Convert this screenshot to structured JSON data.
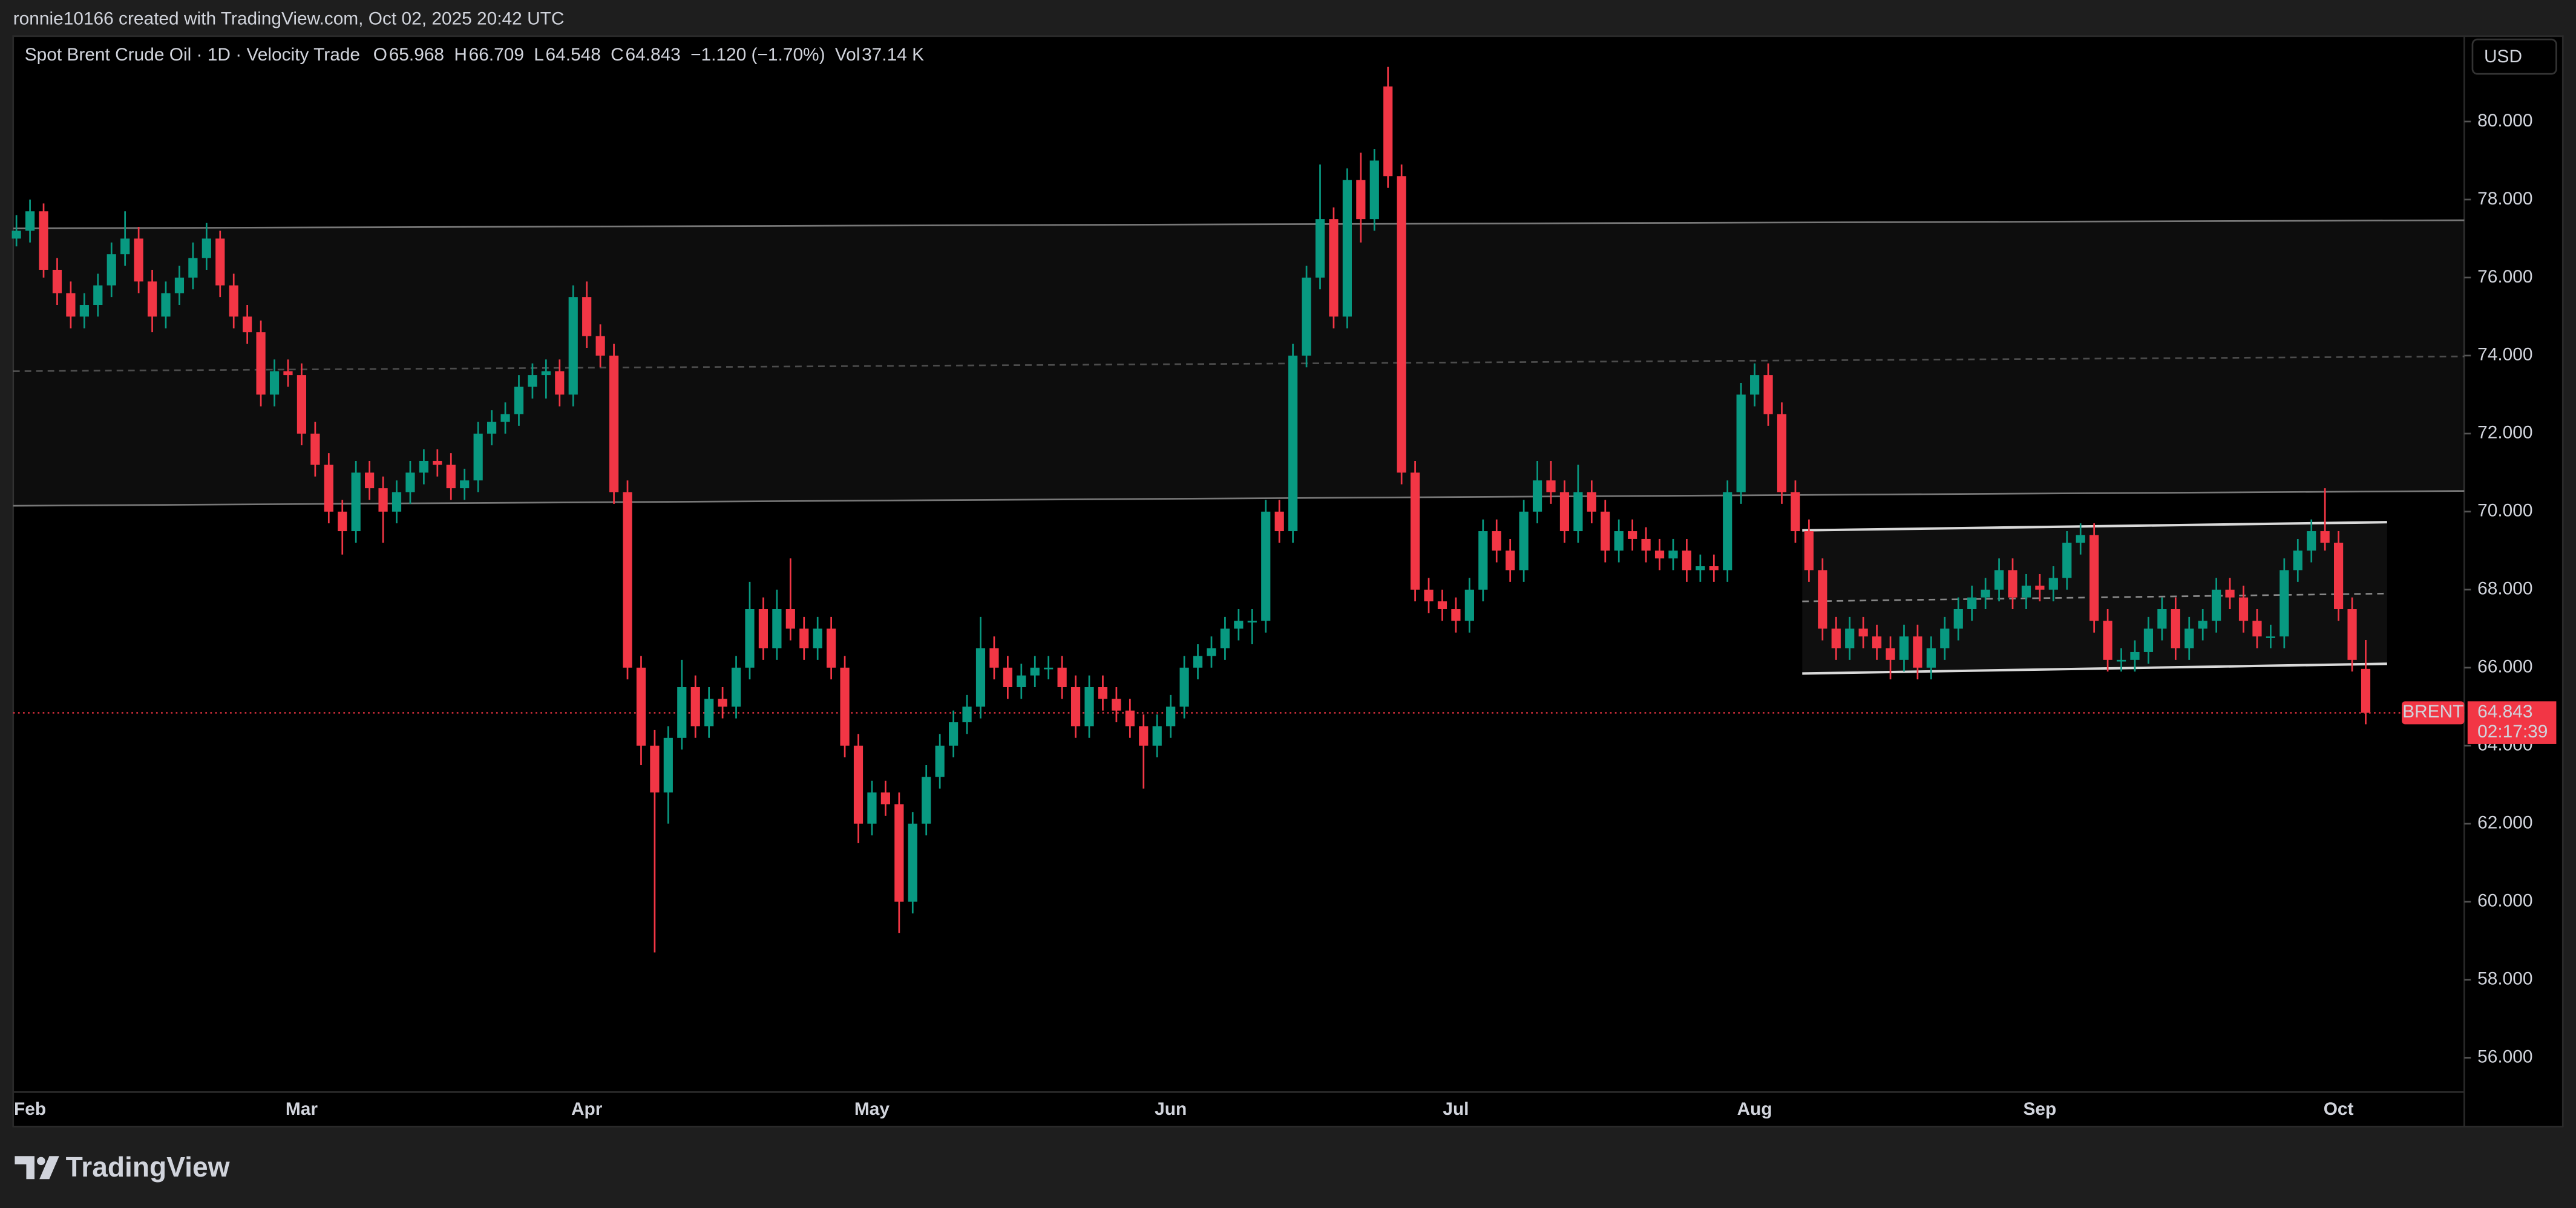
{
  "attribution": "ronnie10166 created with TradingView.com, Oct 02, 2025 20:42 UTC",
  "brand": "TradingView",
  "currency": "USD",
  "chart_data": {
    "type": "candlestick",
    "title": "Spot Brent Crude Oil · 1D · Velocity Trade",
    "legend": [
      {
        "label": "O",
        "value": 65.968
      },
      {
        "label": "H",
        "value": 66.709
      },
      {
        "label": "L",
        "value": 64.548
      },
      {
        "label": "C",
        "value": 64.843
      }
    ],
    "change": "−1.120 (−1.70%)",
    "volume": {
      "label": "Vol",
      "value": "37.14 K"
    },
    "up_color": "#089981",
    "down_color": "#f23645",
    "ylim": [
      55.12,
      82.19
    ],
    "yticks": [
      {
        "value": 56,
        "label": "56.000"
      },
      {
        "value": 58,
        "label": "58.000"
      },
      {
        "value": 60,
        "label": "60.000"
      },
      {
        "value": 62,
        "label": "62.000"
      },
      {
        "value": 64,
        "label": "64.000"
      },
      {
        "value": 66,
        "label": "66.000"
      },
      {
        "value": 68,
        "label": "68.000"
      },
      {
        "value": 70,
        "label": "70.000"
      },
      {
        "value": 72,
        "label": "72.000"
      },
      {
        "value": 74,
        "label": "74.000"
      },
      {
        "value": 76,
        "label": "76.000"
      },
      {
        "value": 78,
        "label": "78.000"
      },
      {
        "value": 80,
        "label": "80.000"
      }
    ],
    "last_price": {
      "name": "BRENT",
      "value": 64.843,
      "countdown": "02:17:39"
    },
    "drawings": [
      {
        "top": [
          77.26,
          77.47
        ],
        "mid": [
          73.6,
          73.98
        ],
        "bottom": [
          70.15,
          70.53
        ]
      },
      {
        "top": [
          69.52,
          69.73
        ],
        "mid": [
          67.7,
          67.9
        ],
        "bottom": [
          65.85,
          66.1
        ]
      }
    ],
    "categories": [
      null,
      "Feb",
      null,
      null,
      null,
      null,
      null,
      null,
      null,
      null,
      null,
      null,
      null,
      null,
      null,
      null,
      null,
      null,
      null,
      null,
      null,
      "Mar",
      null,
      null,
      null,
      null,
      null,
      null,
      null,
      null,
      null,
      null,
      null,
      null,
      null,
      null,
      null,
      null,
      null,
      null,
      null,
      null,
      "Apr",
      null,
      null,
      null,
      null,
      null,
      null,
      null,
      null,
      null,
      null,
      null,
      null,
      null,
      null,
      null,
      null,
      null,
      null,
      null,
      null,
      "May",
      null,
      null,
      null,
      null,
      null,
      null,
      null,
      null,
      null,
      null,
      null,
      null,
      null,
      null,
      null,
      null,
      null,
      null,
      null,
      null,
      null,
      "Jun",
      null,
      null,
      null,
      null,
      null,
      null,
      null,
      null,
      null,
      null,
      null,
      null,
      null,
      null,
      null,
      null,
      null,
      null,
      null,
      null,
      "Jul",
      null,
      null,
      null,
      null,
      null,
      null,
      null,
      null,
      null,
      null,
      null,
      null,
      null,
      null,
      null,
      null,
      null,
      null,
      null,
      null,
      null,
      "Aug",
      null,
      null,
      null,
      null,
      null,
      null,
      null,
      null,
      null,
      null,
      null,
      null,
      null,
      null,
      null,
      null,
      null,
      null,
      null,
      null,
      "Sep",
      null,
      null,
      null,
      null,
      null,
      null,
      null,
      null,
      null,
      null,
      null,
      null,
      null,
      null,
      null,
      null,
      null,
      null,
      null,
      null,
      null,
      "Oct",
      null
    ],
    "ohlc": [
      [
        77.0,
        77.6,
        76.8,
        77.2
      ],
      [
        77.2,
        78.0,
        76.9,
        77.7
      ],
      [
        77.7,
        77.9,
        76.0,
        76.2
      ],
      [
        76.2,
        76.5,
        75.3,
        75.6
      ],
      [
        75.6,
        75.9,
        74.7,
        75.0
      ],
      [
        75.0,
        75.6,
        74.7,
        75.3
      ],
      [
        75.3,
        76.1,
        75.0,
        75.8
      ],
      [
        75.8,
        76.9,
        75.5,
        76.6
      ],
      [
        76.6,
        77.7,
        76.3,
        77.0
      ],
      [
        77.0,
        77.3,
        75.6,
        75.9
      ],
      [
        75.9,
        76.2,
        74.6,
        75.0
      ],
      [
        75.0,
        75.9,
        74.7,
        75.6
      ],
      [
        75.6,
        76.3,
        75.3,
        76.0
      ],
      [
        76.0,
        76.9,
        75.7,
        76.5
      ],
      [
        76.5,
        77.4,
        76.2,
        77.0
      ],
      [
        77.0,
        77.2,
        75.5,
        75.8
      ],
      [
        75.8,
        76.1,
        74.7,
        75.0
      ],
      [
        75.0,
        75.3,
        74.3,
        74.6
      ],
      [
        74.6,
        74.9,
        72.7,
        73.0
      ],
      [
        73.0,
        73.9,
        72.7,
        73.6
      ],
      [
        73.6,
        73.9,
        73.2,
        73.5
      ],
      [
        73.5,
        73.8,
        71.7,
        72.0
      ],
      [
        72.0,
        72.3,
        70.9,
        71.2
      ],
      [
        71.2,
        71.5,
        69.7,
        70.0
      ],
      [
        70.0,
        70.3,
        68.9,
        69.5
      ],
      [
        69.5,
        71.3,
        69.2,
        71.0
      ],
      [
        71.0,
        71.3,
        70.3,
        70.6
      ],
      [
        70.6,
        70.9,
        69.2,
        70.0
      ],
      [
        70.0,
        70.8,
        69.7,
        70.5
      ],
      [
        70.5,
        71.3,
        70.2,
        71.0
      ],
      [
        71.0,
        71.6,
        70.7,
        71.3
      ],
      [
        71.3,
        71.6,
        70.9,
        71.2
      ],
      [
        71.2,
        71.5,
        70.3,
        70.6
      ],
      [
        70.6,
        71.1,
        70.3,
        70.8
      ],
      [
        70.8,
        72.3,
        70.5,
        72.0
      ],
      [
        72.0,
        72.6,
        71.7,
        72.3
      ],
      [
        72.3,
        72.8,
        72.0,
        72.5
      ],
      [
        72.5,
        73.5,
        72.2,
        73.2
      ],
      [
        73.2,
        73.8,
        72.9,
        73.5
      ],
      [
        73.5,
        73.9,
        72.9,
        73.6
      ],
      [
        73.6,
        73.9,
        72.7,
        73.0
      ],
      [
        73.0,
        75.8,
        72.7,
        75.5
      ],
      [
        75.5,
        75.9,
        74.2,
        74.5
      ],
      [
        74.5,
        74.8,
        73.7,
        74.0
      ],
      [
        74.0,
        74.3,
        70.2,
        70.5
      ],
      [
        70.5,
        70.8,
        65.7,
        66.0
      ],
      [
        66.0,
        66.3,
        63.5,
        64.0
      ],
      [
        64.0,
        64.4,
        58.7,
        62.8
      ],
      [
        62.8,
        64.5,
        62.0,
        64.2
      ],
      [
        64.2,
        66.2,
        63.9,
        65.5
      ],
      [
        65.5,
        65.8,
        64.2,
        64.5
      ],
      [
        64.5,
        65.5,
        64.2,
        65.2
      ],
      [
        65.2,
        65.5,
        64.7,
        65.0
      ],
      [
        65.0,
        66.3,
        64.7,
        66.0
      ],
      [
        66.0,
        68.2,
        65.7,
        67.5
      ],
      [
        67.5,
        67.8,
        66.2,
        66.5
      ],
      [
        66.5,
        68.0,
        66.2,
        67.5
      ],
      [
        67.5,
        68.8,
        66.7,
        67.0
      ],
      [
        67.0,
        67.3,
        66.2,
        66.5
      ],
      [
        66.5,
        67.3,
        66.2,
        67.0
      ],
      [
        67.0,
        67.3,
        65.7,
        66.0
      ],
      [
        66.0,
        66.3,
        63.7,
        64.0
      ],
      [
        64.0,
        64.3,
        61.5,
        62.0
      ],
      [
        62.0,
        63.1,
        61.7,
        62.8
      ],
      [
        62.8,
        63.1,
        62.2,
        62.5
      ],
      [
        62.5,
        62.8,
        59.2,
        60.0
      ],
      [
        60.0,
        62.3,
        59.7,
        62.0
      ],
      [
        62.0,
        63.5,
        61.7,
        63.2
      ],
      [
        63.2,
        64.3,
        62.9,
        64.0
      ],
      [
        64.0,
        64.9,
        63.7,
        64.6
      ],
      [
        64.6,
        65.3,
        64.3,
        65.0
      ],
      [
        65.0,
        67.3,
        64.7,
        66.5
      ],
      [
        66.5,
        66.8,
        65.7,
        66.0
      ],
      [
        66.0,
        66.3,
        65.2,
        65.5
      ],
      [
        65.5,
        66.1,
        65.2,
        65.8
      ],
      [
        65.8,
        66.3,
        65.5,
        66.0
      ],
      [
        66.0,
        66.3,
        65.7,
        66.0
      ],
      [
        66.0,
        66.3,
        65.2,
        65.5
      ],
      [
        65.5,
        65.8,
        64.2,
        64.5
      ],
      [
        64.5,
        65.8,
        64.2,
        65.5
      ],
      [
        65.5,
        65.8,
        64.9,
        65.2
      ],
      [
        65.2,
        65.5,
        64.6,
        64.9
      ],
      [
        64.9,
        65.2,
        64.2,
        64.5
      ],
      [
        64.5,
        64.8,
        62.9,
        64.0
      ],
      [
        64.0,
        64.8,
        63.7,
        64.5
      ],
      [
        64.5,
        65.3,
        64.2,
        65.0
      ],
      [
        65.0,
        66.3,
        64.7,
        66.0
      ],
      [
        66.0,
        66.6,
        65.7,
        66.3
      ],
      [
        66.3,
        66.8,
        66.0,
        66.5
      ],
      [
        66.5,
        67.3,
        66.2,
        67.0
      ],
      [
        67.0,
        67.5,
        66.7,
        67.2
      ],
      [
        67.2,
        67.5,
        66.6,
        67.2
      ],
      [
        67.2,
        70.3,
        66.9,
        70.0
      ],
      [
        70.0,
        70.3,
        69.2,
        69.5
      ],
      [
        69.5,
        74.3,
        69.2,
        74.0
      ],
      [
        74.0,
        76.3,
        73.7,
        76.0
      ],
      [
        76.0,
        78.9,
        75.7,
        77.5
      ],
      [
        77.5,
        77.8,
        74.7,
        75.0
      ],
      [
        75.0,
        78.8,
        74.7,
        78.5
      ],
      [
        78.5,
        79.2,
        76.9,
        77.5
      ],
      [
        77.5,
        79.3,
        77.2,
        79.0
      ],
      [
        80.9,
        81.4,
        78.3,
        78.6
      ],
      [
        78.6,
        78.9,
        70.7,
        71.0
      ],
      [
        71.0,
        71.3,
        67.7,
        68.0
      ],
      [
        68.0,
        68.3,
        67.4,
        67.7
      ],
      [
        67.7,
        68.0,
        67.2,
        67.5
      ],
      [
        67.5,
        67.8,
        66.9,
        67.2
      ],
      [
        67.2,
        68.3,
        66.9,
        68.0
      ],
      [
        68.0,
        69.8,
        67.7,
        69.5
      ],
      [
        69.5,
        69.8,
        68.7,
        69.0
      ],
      [
        69.0,
        69.3,
        68.2,
        68.5
      ],
      [
        68.5,
        70.3,
        68.2,
        70.0
      ],
      [
        70.0,
        71.3,
        69.7,
        70.8
      ],
      [
        70.8,
        71.3,
        70.2,
        70.5
      ],
      [
        70.5,
        70.8,
        69.2,
        69.5
      ],
      [
        69.5,
        71.2,
        69.2,
        70.5
      ],
      [
        70.5,
        70.8,
        69.7,
        70.0
      ],
      [
        70.0,
        70.3,
        68.7,
        69.0
      ],
      [
        69.0,
        69.8,
        68.7,
        69.5
      ],
      [
        69.5,
        69.8,
        69.0,
        69.3
      ],
      [
        69.3,
        69.6,
        68.7,
        69.0
      ],
      [
        69.0,
        69.3,
        68.5,
        68.8
      ],
      [
        68.8,
        69.3,
        68.5,
        69.0
      ],
      [
        69.0,
        69.3,
        68.2,
        68.5
      ],
      [
        68.5,
        68.9,
        68.2,
        68.6
      ],
      [
        68.6,
        68.9,
        68.2,
        68.5
      ],
      [
        68.5,
        70.8,
        68.2,
        70.5
      ],
      [
        70.5,
        73.3,
        70.2,
        73.0
      ],
      [
        73.0,
        73.8,
        72.7,
        73.5
      ],
      [
        73.5,
        73.8,
        72.2,
        72.5
      ],
      [
        72.5,
        72.8,
        70.2,
        70.5
      ],
      [
        70.5,
        70.8,
        69.2,
        69.5
      ],
      [
        69.5,
        69.8,
        68.2,
        68.5
      ],
      [
        68.5,
        68.8,
        66.7,
        67.0
      ],
      [
        67.0,
        67.3,
        66.2,
        66.5
      ],
      [
        66.5,
        67.3,
        66.2,
        67.0
      ],
      [
        67.0,
        67.3,
        66.5,
        66.8
      ],
      [
        66.8,
        67.1,
        66.2,
        66.5
      ],
      [
        66.5,
        66.8,
        65.7,
        66.2
      ],
      [
        66.2,
        67.1,
        65.9,
        66.8
      ],
      [
        66.8,
        67.1,
        65.7,
        66.0
      ],
      [
        66.0,
        66.8,
        65.7,
        66.5
      ],
      [
        66.5,
        67.3,
        66.2,
        67.0
      ],
      [
        67.0,
        67.8,
        66.7,
        67.5
      ],
      [
        67.5,
        68.1,
        67.2,
        67.8
      ],
      [
        67.8,
        68.3,
        67.5,
        68.0
      ],
      [
        68.0,
        68.8,
        67.7,
        68.5
      ],
      [
        68.5,
        68.8,
        67.5,
        67.8
      ],
      [
        67.8,
        68.4,
        67.5,
        68.1
      ],
      [
        68.1,
        68.4,
        67.7,
        68.0
      ],
      [
        68.0,
        68.6,
        67.7,
        68.3
      ],
      [
        68.3,
        69.5,
        68.0,
        69.2
      ],
      [
        69.2,
        69.7,
        68.9,
        69.4
      ],
      [
        69.4,
        69.7,
        66.9,
        67.2
      ],
      [
        67.2,
        67.5,
        65.9,
        66.2
      ],
      [
        66.2,
        66.5,
        65.9,
        66.2
      ],
      [
        66.2,
        66.7,
        65.9,
        66.4
      ],
      [
        66.4,
        67.3,
        66.1,
        67.0
      ],
      [
        67.0,
        67.8,
        66.7,
        67.5
      ],
      [
        67.5,
        67.8,
        66.2,
        66.5
      ],
      [
        66.5,
        67.3,
        66.2,
        67.0
      ],
      [
        67.0,
        67.5,
        66.7,
        67.2
      ],
      [
        67.2,
        68.3,
        66.9,
        68.0
      ],
      [
        68.0,
        68.3,
        67.5,
        67.8
      ],
      [
        67.8,
        68.1,
        66.9,
        67.2
      ],
      [
        67.2,
        67.5,
        66.5,
        66.8
      ],
      [
        66.8,
        67.1,
        66.5,
        66.8
      ],
      [
        66.8,
        68.8,
        66.5,
        68.5
      ],
      [
        68.5,
        69.3,
        68.2,
        69.0
      ],
      [
        69.0,
        69.8,
        68.7,
        69.5
      ],
      [
        69.5,
        70.6,
        69.0,
        69.2
      ],
      [
        69.2,
        69.5,
        67.2,
        67.5
      ],
      [
        67.5,
        67.8,
        65.9,
        66.2
      ],
      [
        65.968,
        66.709,
        64.548,
        64.843
      ]
    ]
  }
}
